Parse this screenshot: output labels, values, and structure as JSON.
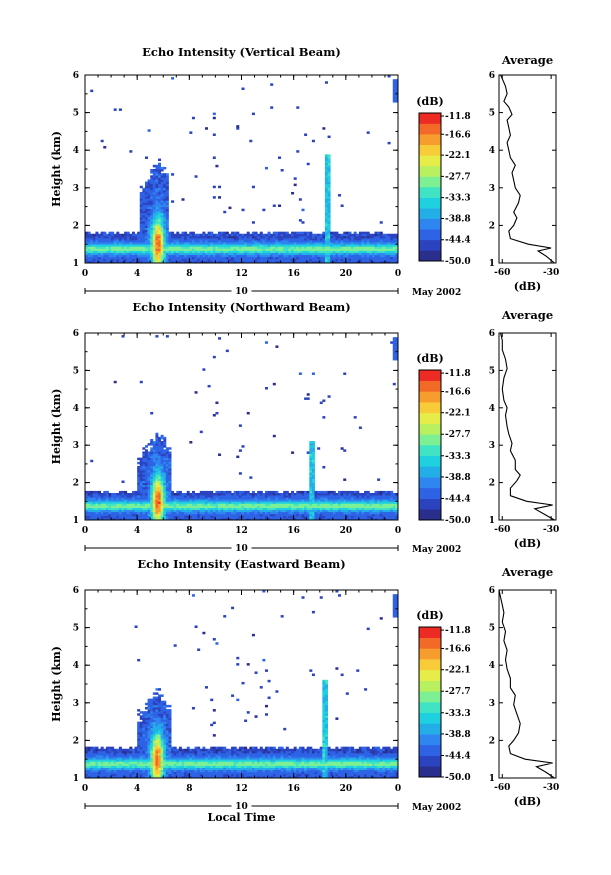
{
  "chart_data": [
    {
      "type": "heatmap",
      "title": "Echo Intensity (Vertical Beam)",
      "ylabel": "Height (km)",
      "xlabel": "",
      "x_ticks": [
        "0",
        "4",
        "8",
        "12",
        "16",
        "20",
        "0"
      ],
      "y_ticks": [
        "1",
        "2",
        "3",
        "4",
        "5",
        "6"
      ],
      "xlim": [
        0,
        24
      ],
      "ylim": [
        1,
        6
      ],
      "date_label": "May 2002",
      "day_label": "10",
      "colorbar": {
        "unit": "(dB)",
        "levels": [
          "-11.8",
          "-16.6",
          "-22.1",
          "-27.7",
          "-33.3",
          "-38.8",
          "-44.4",
          "-50.0"
        ],
        "min": -50.0,
        "max": -11.0
      },
      "features": {
        "layer_top_km": 1.85,
        "convection_start_h": 4.2,
        "convection_end_h": 6.4,
        "convection_top_km": 3.9,
        "spike_h": 18.6,
        "spike_top_km": 3.9
      },
      "profile": {
        "title": "Average",
        "xlabel": "(dB)",
        "x_ticks": [
          "-60",
          "-30"
        ],
        "y_ticks": [
          "1",
          "2",
          "3",
          "4",
          "5",
          "6"
        ],
        "xlim": [
          -62,
          -27
        ],
        "ylim": [
          1,
          6
        ],
        "points": [
          [
            -28,
            1.0
          ],
          [
            -33,
            1.18
          ],
          [
            -38,
            1.32
          ],
          [
            -30,
            1.4
          ],
          [
            -44,
            1.5
          ],
          [
            -55,
            1.65
          ],
          [
            -56,
            1.85
          ],
          [
            -53,
            2.0
          ],
          [
            -51,
            2.2
          ],
          [
            -53,
            2.35
          ],
          [
            -50,
            2.6
          ],
          [
            -49,
            2.8
          ],
          [
            -52,
            3.0
          ],
          [
            -53,
            3.2
          ],
          [
            -54,
            3.4
          ],
          [
            -52,
            3.6
          ],
          [
            -55,
            3.8
          ],
          [
            -56,
            4.0
          ],
          [
            -57,
            4.2
          ],
          [
            -55,
            4.4
          ],
          [
            -56,
            4.6
          ],
          [
            -57,
            4.8
          ],
          [
            -54,
            4.95
          ],
          [
            -56,
            5.15
          ],
          [
            -59,
            5.3
          ],
          [
            -57,
            5.5
          ],
          [
            -58,
            5.7
          ],
          [
            -60,
            5.9
          ],
          [
            -61,
            6.0
          ]
        ]
      }
    },
    {
      "type": "heatmap",
      "title": "Echo Intensity (Northward Beam)",
      "ylabel": "Height (km)",
      "xlabel": "",
      "x_ticks": [
        "0",
        "4",
        "8",
        "12",
        "16",
        "20",
        "0"
      ],
      "y_ticks": [
        "1",
        "2",
        "3",
        "4",
        "5",
        "6"
      ],
      "xlim": [
        0,
        24
      ],
      "ylim": [
        1,
        6
      ],
      "date_label": "May 2002",
      "day_label": "10",
      "colorbar": {
        "unit": "(dB)",
        "levels": [
          "-11.8",
          "-16.6",
          "-22.1",
          "-27.7",
          "-33.3",
          "-38.8",
          "-44.4",
          "-50.0"
        ],
        "min": -50.0,
        "max": -11.0
      },
      "features": {
        "layer_top_km": 1.8,
        "convection_start_h": 4.0,
        "convection_end_h": 6.6,
        "convection_top_km": 3.5,
        "spike_h": 17.4,
        "spike_top_km": 3.1
      },
      "profile": {
        "title": "Average",
        "xlabel": "(dB)",
        "x_ticks": [
          "-60",
          "-30"
        ],
        "y_ticks": [
          "1",
          "2",
          "3",
          "4",
          "5",
          "6"
        ],
        "xlim": [
          -62,
          -27
        ],
        "ylim": [
          1,
          6
        ],
        "points": [
          [
            -28,
            1.0
          ],
          [
            -34,
            1.15
          ],
          [
            -40,
            1.3
          ],
          [
            -29,
            1.4
          ],
          [
            -45,
            1.5
          ],
          [
            -55,
            1.65
          ],
          [
            -55,
            1.85
          ],
          [
            -51,
            2.05
          ],
          [
            -49,
            2.2
          ],
          [
            -52,
            2.35
          ],
          [
            -52,
            2.6
          ],
          [
            -55,
            2.85
          ],
          [
            -54,
            3.05
          ],
          [
            -56,
            3.3
          ],
          [
            -57,
            3.5
          ],
          [
            -58,
            3.8
          ],
          [
            -57,
            4.0
          ],
          [
            -59,
            4.2
          ],
          [
            -60,
            4.5
          ],
          [
            -59,
            4.8
          ],
          [
            -57,
            5.05
          ],
          [
            -58,
            5.3
          ],
          [
            -60,
            5.55
          ],
          [
            -60,
            5.8
          ],
          [
            -61,
            6.0
          ]
        ]
      }
    },
    {
      "type": "heatmap",
      "title": "Echo Intensity (Eastward Beam)",
      "ylabel": "Height (km)",
      "xlabel": "Local Time",
      "x_ticks": [
        "0",
        "4",
        "8",
        "12",
        "16",
        "20",
        "0"
      ],
      "y_ticks": [
        "1",
        "2",
        "3",
        "4",
        "5",
        "6"
      ],
      "xlim": [
        0,
        24
      ],
      "ylim": [
        1,
        6
      ],
      "date_label": "May 2002",
      "day_label": "10",
      "colorbar": {
        "unit": "(dB)",
        "levels": [
          "-11.8",
          "-16.6",
          "-22.1",
          "-27.7",
          "-33.3",
          "-38.8",
          "-44.4",
          "-50.0"
        ],
        "min": -50.0,
        "max": -11.0
      },
      "features": {
        "layer_top_km": 1.85,
        "convection_start_h": 4.0,
        "convection_end_h": 6.5,
        "convection_top_km": 3.5,
        "spike_h": 18.4,
        "spike_top_km": 3.6
      },
      "profile": {
        "title": "Average",
        "xlabel": "(dB)",
        "x_ticks": [
          "-60",
          "-30"
        ],
        "y_ticks": [
          "1",
          "2",
          "3",
          "4",
          "5",
          "6"
        ],
        "xlim": [
          -62,
          -27
        ],
        "ylim": [
          1,
          6
        ],
        "points": [
          [
            -28,
            1.0
          ],
          [
            -33,
            1.15
          ],
          [
            -39,
            1.3
          ],
          [
            -29,
            1.4
          ],
          [
            -46,
            1.5
          ],
          [
            -55,
            1.65
          ],
          [
            -56,
            1.85
          ],
          [
            -53,
            2.0
          ],
          [
            -50,
            2.2
          ],
          [
            -49,
            2.45
          ],
          [
            -51,
            2.7
          ],
          [
            -53,
            2.95
          ],
          [
            -52,
            3.2
          ],
          [
            -55,
            3.4
          ],
          [
            -55,
            3.65
          ],
          [
            -57,
            3.9
          ],
          [
            -58,
            4.15
          ],
          [
            -57,
            4.4
          ],
          [
            -59,
            4.65
          ],
          [
            -58,
            4.9
          ],
          [
            -60,
            5.15
          ],
          [
            -59,
            5.4
          ],
          [
            -60,
            5.6
          ],
          [
            -61,
            5.8
          ],
          [
            -62,
            6.0
          ]
        ]
      }
    }
  ],
  "colors": {
    "colormap": [
      "#2a2f8e",
      "#2b43bf",
      "#2e63e6",
      "#2f86f0",
      "#23aee8",
      "#1fd0e0",
      "#40e4c4",
      "#7ef094",
      "#b8f060",
      "#e6ec48",
      "#f8cc38",
      "#f79d2e",
      "#f36a28",
      "#ee2a24"
    ]
  }
}
